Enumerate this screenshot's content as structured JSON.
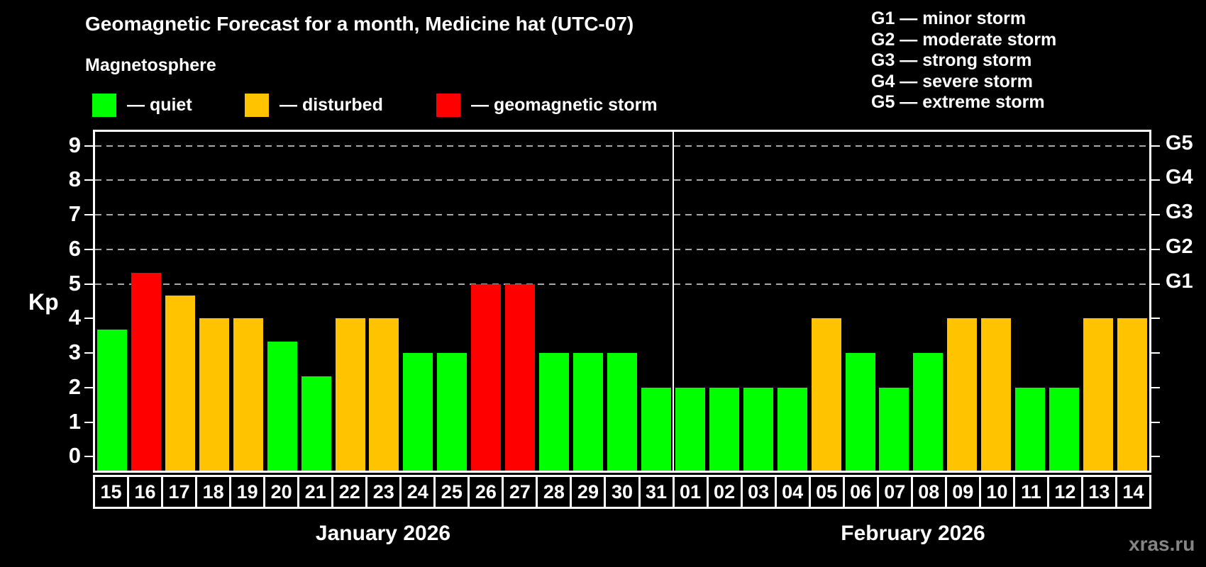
{
  "title": "Geomagnetic Forecast for a month, Medicine hat (UTC-07)",
  "subtitle": "Magnetosphere",
  "legend": {
    "items": [
      {
        "key": "quiet",
        "label": "— quiet",
        "color": "#00ff00"
      },
      {
        "key": "disturbed",
        "label": "— disturbed",
        "color": "#ffc300"
      },
      {
        "key": "storm",
        "label": "— geomagnetic storm",
        "color": "#ff0000"
      }
    ]
  },
  "g_legend": [
    "G1 — minor storm",
    "G2 — moderate storm",
    "G3 — strong storm",
    "G4 — severe storm",
    "G5 — extreme storm"
  ],
  "watermark": "xras.ru",
  "chart_data": {
    "type": "bar",
    "title": "Geomagnetic Forecast for a month, Medicine hat (UTC-07)",
    "ylabel": "Kp",
    "ylim": [
      -0.4,
      9.4
    ],
    "y_ticks": [
      0,
      1,
      2,
      3,
      4,
      5,
      6,
      7,
      8,
      9
    ],
    "gridlines_at": [
      5,
      6,
      7,
      8,
      9
    ],
    "grid": "dashed, horizontal only",
    "legend_position": "top",
    "right_axis_labels": [
      {
        "kp": 5,
        "label": "G1"
      },
      {
        "kp": 6,
        "label": "G2"
      },
      {
        "kp": 7,
        "label": "G3"
      },
      {
        "kp": 8,
        "label": "G4"
      },
      {
        "kp": 9,
        "label": "G5"
      }
    ],
    "months": [
      {
        "label": "January 2026",
        "days": 17
      },
      {
        "label": "February 2026",
        "days": 14
      }
    ],
    "colors": {
      "quiet": "#00ff00",
      "disturbed": "#ffc300",
      "storm": "#ff0000"
    },
    "days": [
      {
        "day": "15",
        "value": 3.67,
        "status": "quiet"
      },
      {
        "day": "16",
        "value": 5.33,
        "status": "storm"
      },
      {
        "day": "17",
        "value": 4.67,
        "status": "disturbed"
      },
      {
        "day": "18",
        "value": 4,
        "status": "disturbed"
      },
      {
        "day": "19",
        "value": 4,
        "status": "disturbed"
      },
      {
        "day": "20",
        "value": 3.33,
        "status": "quiet"
      },
      {
        "day": "21",
        "value": 2.33,
        "status": "quiet"
      },
      {
        "day": "22",
        "value": 4,
        "status": "disturbed"
      },
      {
        "day": "23",
        "value": 4,
        "status": "disturbed"
      },
      {
        "day": "24",
        "value": 3,
        "status": "quiet"
      },
      {
        "day": "25",
        "value": 3,
        "status": "quiet"
      },
      {
        "day": "26",
        "value": 5,
        "status": "storm"
      },
      {
        "day": "27",
        "value": 5,
        "status": "storm"
      },
      {
        "day": "28",
        "value": 3,
        "status": "quiet"
      },
      {
        "day": "29",
        "value": 3,
        "status": "quiet"
      },
      {
        "day": "30",
        "value": 3,
        "status": "quiet"
      },
      {
        "day": "31",
        "value": 2,
        "status": "quiet"
      },
      {
        "day": "01",
        "value": 2,
        "status": "quiet"
      },
      {
        "day": "02",
        "value": 2,
        "status": "quiet"
      },
      {
        "day": "03",
        "value": 2,
        "status": "quiet"
      },
      {
        "day": "04",
        "value": 2,
        "status": "quiet"
      },
      {
        "day": "05",
        "value": 4,
        "status": "disturbed"
      },
      {
        "day": "06",
        "value": 3,
        "status": "quiet"
      },
      {
        "day": "07",
        "value": 2,
        "status": "quiet"
      },
      {
        "day": "08",
        "value": 3,
        "status": "quiet"
      },
      {
        "day": "09",
        "value": 4,
        "status": "disturbed"
      },
      {
        "day": "10",
        "value": 4,
        "status": "disturbed"
      },
      {
        "day": "11",
        "value": 2,
        "status": "quiet"
      },
      {
        "day": "12",
        "value": 2,
        "status": "quiet"
      },
      {
        "day": "13",
        "value": 4,
        "status": "disturbed"
      },
      {
        "day": "14",
        "value": 4,
        "status": "disturbed"
      }
    ]
  }
}
